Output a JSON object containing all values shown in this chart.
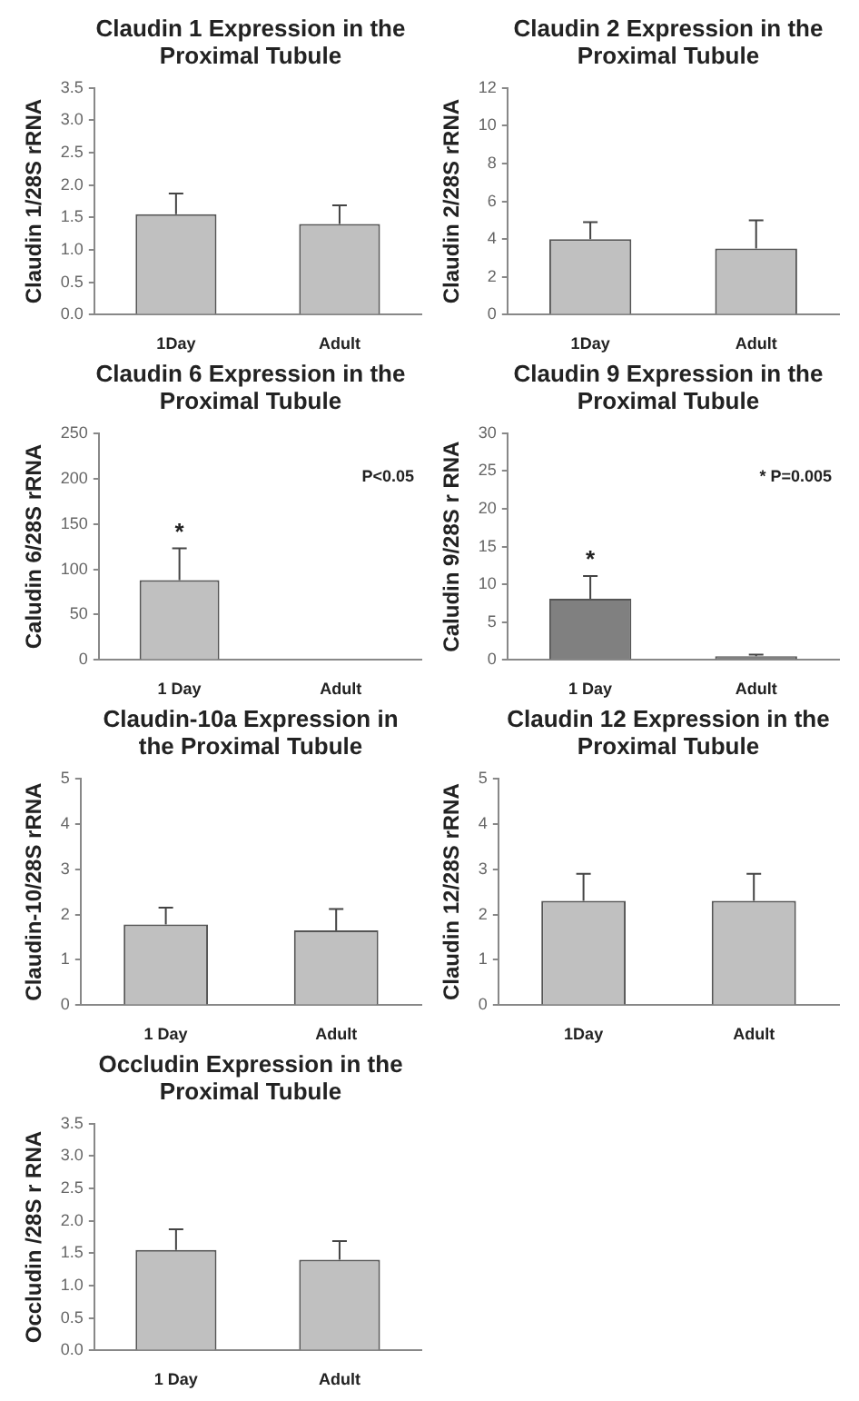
{
  "chart_data": [
    {
      "type": "bar",
      "title": "Claudin 1 Expression in the Proximal Tubule",
      "ylabel": "Claudin 1/28S rRNA",
      "categories": [
        "1Day",
        "Adult"
      ],
      "values": [
        1.55,
        1.4
      ],
      "errors": [
        [
          1.55,
          1.87
        ],
        [
          1.4,
          1.69
        ]
      ],
      "color": "#c0c0c0",
      "ylim": [
        0,
        3.5
      ],
      "yticks": [
        {
          "value": 0,
          "label": "0.0"
        },
        0.5,
        {
          "value": 1,
          "label": "1.0"
        },
        1.5,
        {
          "value": 2,
          "label": "2.0"
        },
        2.5,
        {
          "value": 3,
          "label": "3.0"
        },
        3.5
      ]
    },
    {
      "type": "bar",
      "title": "Claudin 2 Expression in the Proximal Tubule",
      "ylabel": "Claudin 2/28S rRNA",
      "categories": [
        "1Day",
        "Adult"
      ],
      "values": [
        4.0,
        3.5
      ],
      "errors": [
        [
          4.0,
          4.9
        ],
        [
          3.5,
          5.0
        ]
      ],
      "color": "#c0c0c0",
      "ylim": [
        0,
        12
      ],
      "yticks": [
        0,
        2,
        4,
        6,
        8,
        10,
        12
      ]
    },
    {
      "type": "bar",
      "title": "Claudin 6 Expression in the Proximal Tubule",
      "ylabel": "Caludin 6/28S rRNA",
      "categories": [
        "1 Day",
        "Adult"
      ],
      "values": [
        88,
        1
      ],
      "errors": [
        [
          88,
          123
        ],
        null
      ],
      "color": "#c0c0c0",
      "ylim": [
        0,
        250
      ],
      "yticks": [
        0,
        50,
        100,
        150,
        200,
        250
      ],
      "annotations": [
        "*",
        "P<0.05"
      ]
    },
    {
      "type": "bar",
      "title": "Claudin 9 Expression in the Proximal Tubule",
      "ylabel": "Caludin 9/28S r RNA",
      "categories": [
        "1 Day",
        "Adult"
      ],
      "values": [
        8.1,
        0.5
      ],
      "errors": [
        [
          8.1,
          11.1
        ],
        [
          0.5,
          0.7
        ]
      ],
      "color": "#808080",
      "ylim": [
        0,
        30
      ],
      "yticks": [
        0,
        5,
        10,
        15,
        20,
        25,
        30
      ],
      "annotations": [
        "*",
        "* P=0.005"
      ]
    },
    {
      "type": "bar",
      "title": "Claudin-10a Expression in the Proximal Tubule",
      "ylabel": "Claudin-10/28S rRNA",
      "categories": [
        "1 Day",
        "Adult"
      ],
      "values": [
        1.78,
        1.65
      ],
      "errors": [
        [
          1.78,
          2.15
        ],
        [
          1.65,
          2.12
        ]
      ],
      "color": "#c0c0c0",
      "ylim": [
        0,
        5
      ],
      "yticks": [
        0,
        1,
        2,
        3,
        4,
        5
      ]
    },
    {
      "type": "bar",
      "title": "Claudin 12 Expression in the Proximal Tubule",
      "ylabel": "Claudin 12/28S rRNA",
      "categories": [
        "1Day",
        "Adult"
      ],
      "values": [
        2.3,
        2.3
      ],
      "errors": [
        [
          2.3,
          2.9
        ],
        [
          2.3,
          2.9
        ]
      ],
      "color": "#c0c0c0",
      "ylim": [
        0,
        5
      ],
      "yticks": [
        0,
        1,
        2,
        3,
        4,
        5
      ]
    },
    {
      "type": "bar",
      "title": "Occludin Expression in the Proximal Tubule",
      "ylabel": "Occludin /28S r RNA",
      "categories": [
        "1 Day",
        "Adult"
      ],
      "values": [
        1.55,
        1.4
      ],
      "errors": [
        [
          1.55,
          1.87
        ],
        [
          1.4,
          1.69
        ]
      ],
      "color": "#c0c0c0",
      "ylim": [
        0,
        3.5
      ],
      "yticks": [
        {
          "value": 0,
          "label": "0.0"
        },
        0.5,
        {
          "value": 1,
          "label": "1.0"
        },
        1.5,
        {
          "value": 2,
          "label": "2.0"
        },
        2.5,
        {
          "value": 3,
          "label": "3.0"
        },
        3.5
      ]
    }
  ]
}
